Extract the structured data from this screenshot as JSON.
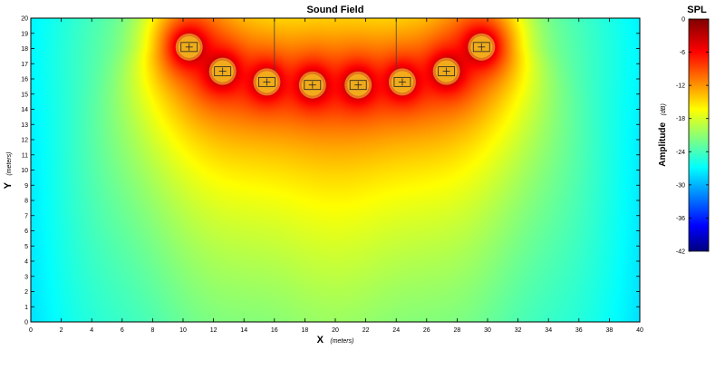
{
  "chart_data": {
    "type": "heatmap",
    "title": "Sound Field",
    "xlabel": "X",
    "xlabel_unit": "(meters)",
    "ylabel": "Y",
    "ylabel_unit": "(meters)",
    "xlim": [
      0,
      40
    ],
    "ylim": [
      0,
      20
    ],
    "x_ticks": [
      0,
      2,
      4,
      6,
      8,
      10,
      12,
      14,
      16,
      18,
      20,
      22,
      24,
      26,
      28,
      30,
      32,
      34,
      36,
      38,
      40
    ],
    "y_ticks": [
      0,
      1,
      2,
      3,
      4,
      5,
      6,
      7,
      8,
      9,
      10,
      11,
      12,
      13,
      14,
      15,
      16,
      17,
      18,
      19,
      20
    ],
    "colorbar": {
      "title": "SPL",
      "label": "Amplitude",
      "unit": "(dB)",
      "range": [
        -42,
        0
      ],
      "ticks": [
        0,
        -6,
        -12,
        -18,
        -24,
        -30,
        -36,
        -42
      ]
    },
    "sources": [
      {
        "x": 10.4,
        "y": 18.1
      },
      {
        "x": 12.6,
        "y": 16.5
      },
      {
        "x": 15.5,
        "y": 15.8
      },
      {
        "x": 18.5,
        "y": 15.6
      },
      {
        "x": 21.5,
        "y": 15.6
      },
      {
        "x": 24.4,
        "y": 15.8
      },
      {
        "x": 27.3,
        "y": 16.5
      },
      {
        "x": 29.6,
        "y": 18.1
      }
    ],
    "guide_lines_x": [
      16,
      24
    ]
  }
}
